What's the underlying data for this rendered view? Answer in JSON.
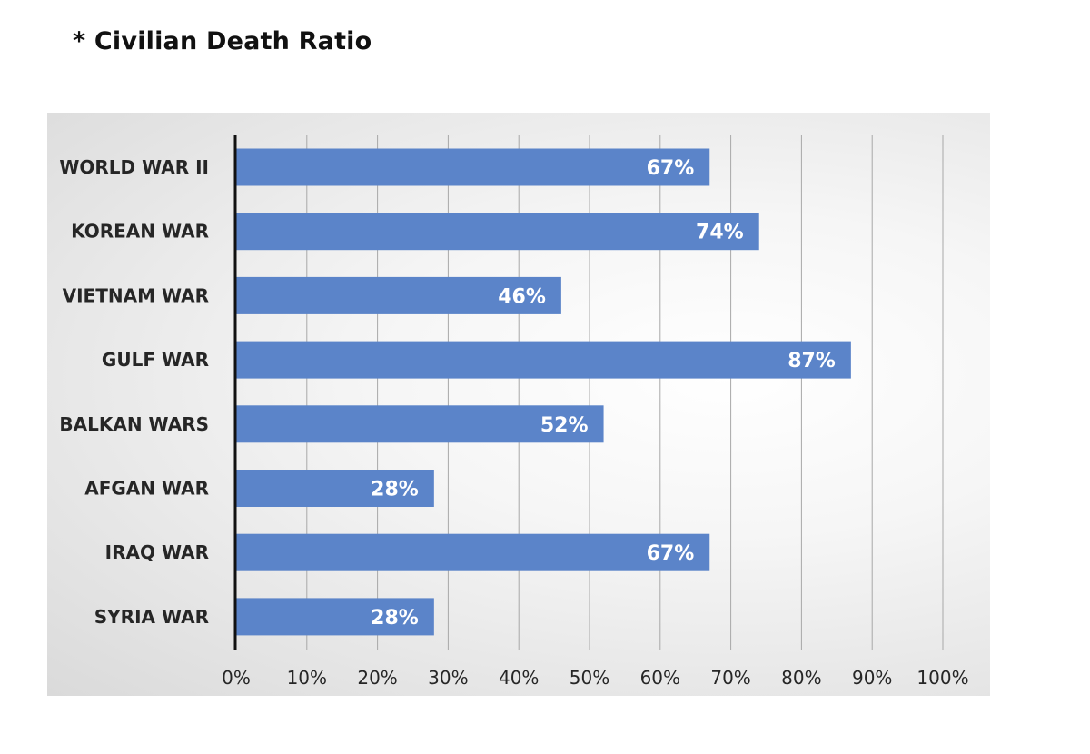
{
  "title": "* Civilian Death Ratio",
  "colors": {
    "bar": "#5b84c9",
    "axis": "#111111",
    "grid": "#a8a8a8",
    "data_label": "#ffffff"
  },
  "chart_data": {
    "type": "bar",
    "orientation": "horizontal",
    "title": "* Civilian Death Ratio",
    "xlabel": "",
    "ylabel": "",
    "xlim": [
      0,
      100
    ],
    "grid": true,
    "categories": [
      "WORLD WAR II",
      "KOREAN WAR",
      "VIETNAM WAR",
      "GULF WAR",
      "BALKAN WARS",
      "AFGAN WAR",
      "IRAQ WAR",
      "SYRIA WAR"
    ],
    "values": [
      67,
      74,
      46,
      87,
      52,
      28,
      67,
      28
    ],
    "data_labels": [
      "67%",
      "74%",
      "46%",
      "87%",
      "52%",
      "28%",
      "67%",
      "28%"
    ],
    "ticks": [
      0,
      10,
      20,
      30,
      40,
      50,
      60,
      70,
      80,
      90,
      100
    ],
    "tick_labels": [
      "0%",
      "10%",
      "20%",
      "30%",
      "40%",
      "50%",
      "60%",
      "70%",
      "80%",
      "90%",
      "100%"
    ]
  }
}
